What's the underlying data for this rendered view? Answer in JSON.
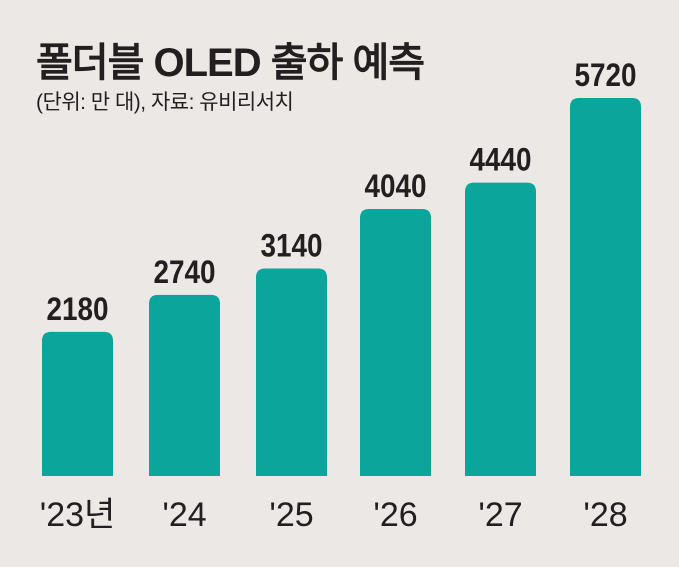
{
  "chart_data": {
    "type": "bar",
    "title": "폴더블 OLED 출하 예측",
    "subtitle": "(단위: 만 대), 자료: 유비리서치",
    "categories": [
      "'23년",
      "'24",
      "'25",
      "'26",
      "'27",
      "'28"
    ],
    "values": [
      2180,
      2740,
      3140,
      4040,
      4440,
      5720
    ],
    "data_labels": [
      "2180",
      "2740",
      "3140",
      "4040",
      "4440",
      "5720"
    ],
    "ylim": [
      0,
      5720
    ],
    "grid": false,
    "bar_color": "#0aa59b",
    "background": "#ece8e5"
  }
}
